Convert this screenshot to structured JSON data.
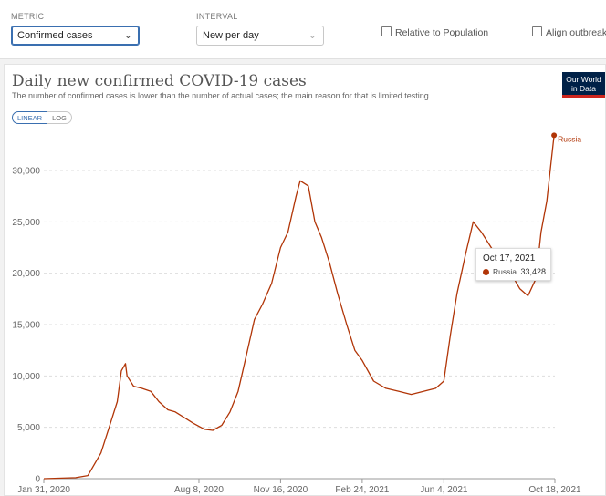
{
  "controls": {
    "metric_label": "METRIC",
    "metric_value": "Confirmed cases",
    "interval_label": "INTERVAL",
    "interval_value": "New per day",
    "relative_label": "Relative to Population",
    "align_label": "Align outbreaks"
  },
  "header": {
    "title": "Daily new confirmed COVID-19 cases",
    "subtitle": "The number of confirmed cases is lower than the number of actual cases; the main reason for that is limited testing.",
    "logo_line1": "Our World",
    "logo_line2": "in Data"
  },
  "scale": {
    "linear": "LINEAR",
    "log": "LOG",
    "selected": "linear"
  },
  "tooltip": {
    "date": "Oct 17, 2021",
    "series": "Russia",
    "value": "33,428"
  },
  "colors": {
    "series": "#b13507",
    "grid": "#dddddd",
    "accent": "#3a6fb0"
  },
  "chart_data": {
    "type": "line",
    "title": "Daily new confirmed COVID-19 cases",
    "subtitle": "The number of confirmed cases is lower than the number of actual cases; the main reason for that is limited testing.",
    "xlabel": "",
    "ylabel": "",
    "ylim": [
      0,
      30000
    ],
    "y_ticks": [
      0,
      5000,
      10000,
      15000,
      20000,
      25000,
      30000
    ],
    "y_tick_labels": [
      "0",
      "5,000",
      "10,000",
      "15,000",
      "20,000",
      "25,000",
      "30,000"
    ],
    "x_tick_labels": [
      "Jan 31, 2020",
      "Aug 8, 2020",
      "Nov 16, 2020",
      "Feb 24, 2021",
      "Jun 4, 2021",
      "Oct 18, 2021"
    ],
    "x_ticks": [
      "2020-01-31",
      "2020-08-08",
      "2020-11-16",
      "2021-02-24",
      "2021-06-04",
      "2021-10-18"
    ],
    "grid": true,
    "series": [
      {
        "name": "Russia",
        "x": [
          "2020-01-31",
          "2020-03-10",
          "2020-03-25",
          "2020-04-10",
          "2020-04-20",
          "2020-04-30",
          "2020-05-05",
          "2020-05-10",
          "2020-05-12",
          "2020-05-20",
          "2020-05-30",
          "2020-06-10",
          "2020-06-20",
          "2020-07-01",
          "2020-07-10",
          "2020-07-20",
          "2020-08-01",
          "2020-08-15",
          "2020-08-25",
          "2020-09-05",
          "2020-09-15",
          "2020-09-25",
          "2020-10-05",
          "2020-10-15",
          "2020-10-25",
          "2020-11-05",
          "2020-11-16",
          "2020-11-25",
          "2020-12-05",
          "2020-12-10",
          "2020-12-20",
          "2020-12-28",
          "2021-01-05",
          "2021-01-15",
          "2021-01-25",
          "2021-02-05",
          "2021-02-15",
          "2021-02-24",
          "2021-03-10",
          "2021-03-25",
          "2021-04-10",
          "2021-04-25",
          "2021-05-10",
          "2021-05-25",
          "2021-06-04",
          "2021-06-12",
          "2021-06-20",
          "2021-07-01",
          "2021-07-10",
          "2021-07-20",
          "2021-08-01",
          "2021-08-15",
          "2021-08-25",
          "2021-09-05",
          "2021-09-15",
          "2021-09-25",
          "2021-10-01",
          "2021-10-08",
          "2021-10-17"
        ],
        "y": [
          0,
          100,
          300,
          2500,
          5000,
          7500,
          10500,
          11200,
          10000,
          9000,
          8800,
          8500,
          7500,
          6700,
          6500,
          6000,
          5400,
          4800,
          4700,
          5200,
          6500,
          8500,
          12000,
          15500,
          17000,
          19000,
          22500,
          24000,
          27500,
          29000,
          28500,
          25000,
          23500,
          21000,
          18000,
          15000,
          12500,
          11500,
          9500,
          8800,
          8500,
          8200,
          8500,
          8800,
          9500,
          14000,
          18000,
          22000,
          25000,
          24000,
          22500,
          21000,
          20000,
          18500,
          17800,
          19500,
          24000,
          27000,
          33428
        ]
      }
    ],
    "annotations": [
      "Russia"
    ]
  }
}
